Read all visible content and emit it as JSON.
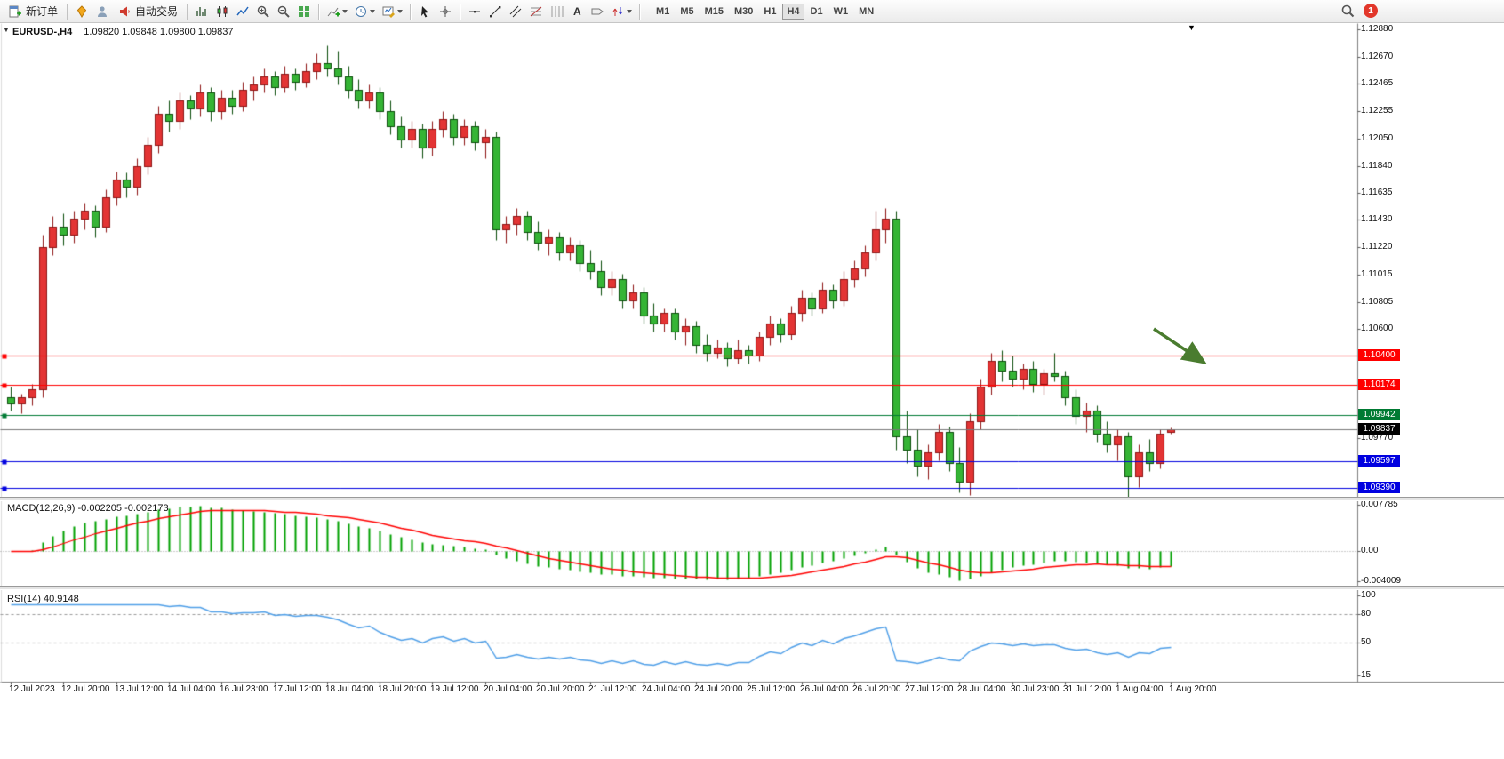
{
  "colors": {
    "bull": "#e33434",
    "bull_border": "#8e1414",
    "bear": "#35b435",
    "bear_border": "#0a4d0a",
    "macd_hist": "#00a000",
    "macd_signal": "#ff0000",
    "rsi_line": "#4f9fe8",
    "bid_line": "#777777",
    "current_box": "#000000"
  },
  "icons": {
    "collapse": "▼",
    "shift": "▼"
  },
  "toolbar": {
    "new_order": "新订单",
    "autotrading": "自动交易",
    "timeframes": [
      "M1",
      "M5",
      "M15",
      "M30",
      "H1",
      "H4",
      "D1",
      "W1",
      "MN"
    ],
    "active_timeframe": "H4",
    "notification_count": "1"
  },
  "header": {
    "symbol": "EURUSD-,H4",
    "ohlc": "1.09820 1.09848 1.09800 1.09837"
  },
  "chart_data": {
    "type": "candlestick",
    "symbol": "EURUSD-",
    "timeframe": "H4",
    "price_axis_ticks": [
      "1.12880",
      "1.12670",
      "1.12465",
      "1.12255",
      "1.12050",
      "1.11840",
      "1.11635",
      "1.11430",
      "1.11220",
      "1.11015",
      "1.10805",
      "1.10600",
      "1.09770"
    ],
    "levels": [
      {
        "label": "1.10400",
        "value": 1.104,
        "color": "#ff0000"
      },
      {
        "label": "1.10174",
        "value": 1.10174,
        "color": "#ff0000"
      },
      {
        "label": "1.09942",
        "value": 1.09942,
        "color": "#007a33"
      },
      {
        "label": "1.09597",
        "value": 1.09597,
        "color": "#0000e0"
      },
      {
        "label": "1.09390",
        "value": 1.0939,
        "color": "#0000e0"
      }
    ],
    "current_price": {
      "label": "1.09837",
      "value": 1.09837
    },
    "time_ticks": [
      "12 Jul 2023",
      "12 Jul 20:00",
      "13 Jul 12:00",
      "14 Jul 04:00",
      "16 Jul 23:00",
      "17 Jul 12:00",
      "18 Jul 04:00",
      "18 Jul 20:00",
      "19 Jul 12:00",
      "20 Jul 04:00",
      "20 Jul 20:00",
      "21 Jul 12:00",
      "24 Jul 04:00",
      "24 Jul 20:00",
      "25 Jul 12:00",
      "26 Jul 04:00",
      "26 Jul 20:00",
      "27 Jul 12:00",
      "28 Jul 04:00",
      "30 Jul 23:00",
      "31 Jul 12:00",
      "1 Aug 04:00",
      "1 Aug 20:00"
    ],
    "candles": [
      [
        1.1008,
        1.1016,
        1.0998,
        1.1003
      ],
      [
        1.1003,
        1.1011,
        1.0996,
        1.1008
      ],
      [
        1.1008,
        1.1018,
        1.1002,
        1.1014
      ],
      [
        1.1014,
        1.1132,
        1.1008,
        1.1122
      ],
      [
        1.1122,
        1.1146,
        1.1116,
        1.1138
      ],
      [
        1.1138,
        1.1148,
        1.1124,
        1.1132
      ],
      [
        1.1132,
        1.115,
        1.1126,
        1.1144
      ],
      [
        1.1144,
        1.1156,
        1.1136,
        1.115
      ],
      [
        1.115,
        1.1154,
        1.113,
        1.1138
      ],
      [
        1.1138,
        1.1166,
        1.1134,
        1.116
      ],
      [
        1.116,
        1.118,
        1.1154,
        1.1174
      ],
      [
        1.1174,
        1.1179,
        1.116,
        1.1168
      ],
      [
        1.1168,
        1.119,
        1.1162,
        1.1184
      ],
      [
        1.1184,
        1.1206,
        1.1178,
        1.12
      ],
      [
        1.12,
        1.123,
        1.1194,
        1.1224
      ],
      [
        1.1224,
        1.1234,
        1.121,
        1.1218
      ],
      [
        1.1218,
        1.124,
        1.1212,
        1.1234
      ],
      [
        1.1234,
        1.1238,
        1.122,
        1.1228
      ],
      [
        1.1228,
        1.1246,
        1.1222,
        1.124
      ],
      [
        1.124,
        1.1244,
        1.1218,
        1.1226
      ],
      [
        1.1226,
        1.1242,
        1.122,
        1.1236
      ],
      [
        1.1236,
        1.1242,
        1.1224,
        1.123
      ],
      [
        1.123,
        1.1248,
        1.1226,
        1.1242
      ],
      [
        1.1242,
        1.1252,
        1.1234,
        1.1246
      ],
      [
        1.1246,
        1.1258,
        1.124,
        1.1252
      ],
      [
        1.1252,
        1.1256,
        1.1238,
        1.1244
      ],
      [
        1.1244,
        1.126,
        1.124,
        1.1254
      ],
      [
        1.1254,
        1.1258,
        1.1242,
        1.1248
      ],
      [
        1.1248,
        1.1262,
        1.1244,
        1.1256
      ],
      [
        1.1256,
        1.127,
        1.125,
        1.1262
      ],
      [
        1.1262,
        1.1276,
        1.1252,
        1.1258
      ],
      [
        1.1258,
        1.1272,
        1.1246,
        1.1252
      ],
      [
        1.1252,
        1.126,
        1.1236,
        1.1242
      ],
      [
        1.1242,
        1.125,
        1.1228,
        1.1234
      ],
      [
        1.1234,
        1.1246,
        1.1228,
        1.124
      ],
      [
        1.124,
        1.1244,
        1.122,
        1.1226
      ],
      [
        1.1226,
        1.1234,
        1.1208,
        1.1214
      ],
      [
        1.1214,
        1.1222,
        1.1198,
        1.1204
      ],
      [
        1.1204,
        1.1218,
        1.1198,
        1.1212
      ],
      [
        1.1212,
        1.1216,
        1.119,
        1.1198
      ],
      [
        1.1198,
        1.1218,
        1.1192,
        1.1212
      ],
      [
        1.1212,
        1.1226,
        1.1206,
        1.122
      ],
      [
        1.122,
        1.1224,
        1.12,
        1.1206
      ],
      [
        1.1206,
        1.122,
        1.12,
        1.1214
      ],
      [
        1.1214,
        1.1218,
        1.1196,
        1.1202
      ],
      [
        1.1202,
        1.1212,
        1.119,
        1.1206
      ],
      [
        1.1206,
        1.121,
        1.1128,
        1.1136
      ],
      [
        1.1136,
        1.1146,
        1.1126,
        1.114
      ],
      [
        1.114,
        1.1152,
        1.1132,
        1.1146
      ],
      [
        1.1146,
        1.115,
        1.1128,
        1.1134
      ],
      [
        1.1134,
        1.1142,
        1.112,
        1.1126
      ],
      [
        1.1126,
        1.1136,
        1.1116,
        1.113
      ],
      [
        1.113,
        1.1134,
        1.1112,
        1.1118
      ],
      [
        1.1118,
        1.113,
        1.1112,
        1.1124
      ],
      [
        1.1124,
        1.1128,
        1.1104,
        1.111
      ],
      [
        1.111,
        1.112,
        1.1098,
        1.1104
      ],
      [
        1.1104,
        1.1112,
        1.1086,
        1.1092
      ],
      [
        1.1092,
        1.1104,
        1.1086,
        1.1098
      ],
      [
        1.1098,
        1.1102,
        1.1076,
        1.1082
      ],
      [
        1.1082,
        1.1094,
        1.1076,
        1.1088
      ],
      [
        1.1088,
        1.1092,
        1.1064,
        1.107
      ],
      [
        1.107,
        1.108,
        1.1058,
        1.1064
      ],
      [
        1.1064,
        1.1076,
        1.1058,
        1.1072
      ],
      [
        1.1072,
        1.1076,
        1.1052,
        1.1058
      ],
      [
        1.1058,
        1.1068,
        1.1048,
        1.1062
      ],
      [
        1.1062,
        1.1066,
        1.1042,
        1.1048
      ],
      [
        1.1048,
        1.1056,
        1.1036,
        1.1042
      ],
      [
        1.1042,
        1.1052,
        1.1038,
        1.1046
      ],
      [
        1.1046,
        1.105,
        1.1032,
        1.1038
      ],
      [
        1.1038,
        1.1052,
        1.1034,
        1.1044
      ],
      [
        1.1044,
        1.1048,
        1.1034,
        1.104
      ],
      [
        1.104,
        1.1058,
        1.1036,
        1.1054
      ],
      [
        1.1054,
        1.107,
        1.1048,
        1.1064
      ],
      [
        1.1064,
        1.1068,
        1.105,
        1.1056
      ],
      [
        1.1056,
        1.1078,
        1.1052,
        1.1072
      ],
      [
        1.1072,
        1.109,
        1.1066,
        1.1084
      ],
      [
        1.1084,
        1.1088,
        1.107,
        1.1076
      ],
      [
        1.1076,
        1.1096,
        1.1072,
        1.109
      ],
      [
        1.109,
        1.1094,
        1.1076,
        1.1082
      ],
      [
        1.1082,
        1.1104,
        1.1078,
        1.1098
      ],
      [
        1.1098,
        1.1112,
        1.1092,
        1.1106
      ],
      [
        1.1106,
        1.1124,
        1.11,
        1.1118
      ],
      [
        1.1118,
        1.115,
        1.1112,
        1.1136
      ],
      [
        1.1136,
        1.1152,
        1.1126,
        1.1144
      ],
      [
        1.1144,
        1.115,
        1.0968,
        1.0978
      ],
      [
        1.0978,
        1.0998,
        1.0958,
        1.0968
      ],
      [
        1.0968,
        1.0984,
        1.0948,
        1.0956
      ],
      [
        1.0956,
        1.0972,
        1.0946,
        1.0966
      ],
      [
        1.0966,
        1.0988,
        1.096,
        1.0982
      ],
      [
        1.0982,
        1.0986,
        1.0952,
        1.0958
      ],
      [
        1.0958,
        1.097,
        1.0936,
        1.0944
      ],
      [
        1.0944,
        1.0996,
        1.0934,
        1.099
      ],
      [
        1.099,
        1.1022,
        1.0984,
        1.1016
      ],
      [
        1.1016,
        1.1042,
        1.101,
        1.1036
      ],
      [
        1.1036,
        1.1044,
        1.102,
        1.1028
      ],
      [
        1.1028,
        1.104,
        1.1016,
        1.1022
      ],
      [
        1.1022,
        1.1034,
        1.1014,
        1.103
      ],
      [
        1.103,
        1.1036,
        1.1012,
        1.1018
      ],
      [
        1.1018,
        1.103,
        1.101,
        1.1026
      ],
      [
        1.1026,
        1.1042,
        1.102,
        1.1024
      ],
      [
        1.1024,
        1.1028,
        1.1002,
        1.1008
      ],
      [
        1.1008,
        1.1014,
        1.0988,
        1.0994
      ],
      [
        1.0994,
        1.1004,
        1.0982,
        1.0998
      ],
      [
        1.0998,
        1.1002,
        1.0974,
        1.098
      ],
      [
        1.098,
        1.099,
        1.0966,
        1.0972
      ],
      [
        1.0972,
        1.0984,
        1.096,
        1.0978
      ],
      [
        1.0978,
        1.0982,
        1.093,
        1.0948
      ],
      [
        1.0948,
        1.0972,
        1.094,
        1.0966
      ],
      [
        1.0966,
        1.0976,
        1.0952,
        1.0958
      ],
      [
        1.0958,
        1.0984,
        1.0954,
        1.098
      ],
      [
        1.0982,
        1.09848,
        1.098,
        1.09837
      ]
    ],
    "indicators": {
      "macd": {
        "name": "MACD(12,26,9)",
        "values": "-0.002205 -0.002173",
        "fast": 12,
        "slow": 26,
        "signal": 9,
        "axis_top": "0.007785",
        "axis_zero": "0.00",
        "axis_bottom": "-0.004009"
      },
      "rsi": {
        "name": "RSI(14)",
        "value": "40.9148",
        "period": 14,
        "axis_labels": [
          {
            "label": "100",
            "value": 100
          },
          {
            "label": "80",
            "value": 80
          },
          {
            "label": "50",
            "value": 50
          },
          {
            "label": "15",
            "value": 15
          }
        ],
        "level_lines": [
          80,
          50
        ]
      }
    },
    "annotation_arrow": {
      "color": "#4a7c2f"
    }
  }
}
